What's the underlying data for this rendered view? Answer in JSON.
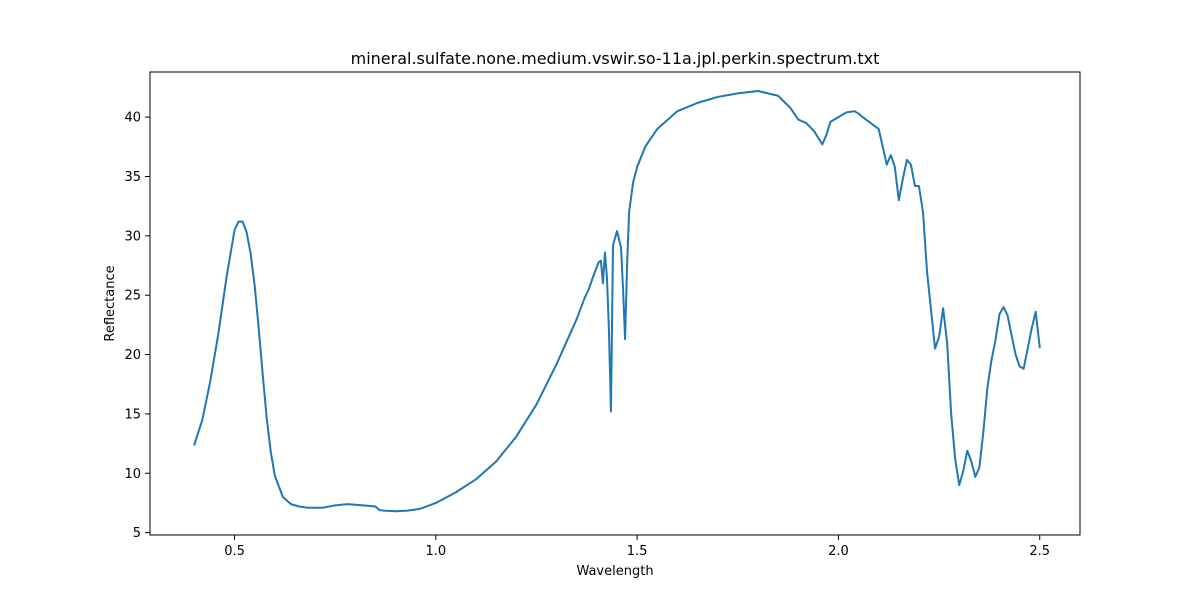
{
  "chart_data": {
    "type": "line",
    "title": "mineral.sulfate.none.medium.vswir.so-11a.jpl.perkin.spectrum.txt",
    "xlabel": "Wavelength",
    "ylabel": "Reflectance",
    "xlim": [
      0.29,
      2.6
    ],
    "ylim": [
      4.8,
      43.8
    ],
    "xticks": [
      0.5,
      1.0,
      1.5,
      2.0,
      2.5
    ],
    "xtick_labels": [
      "0.5",
      "1.0",
      "1.5",
      "2.0",
      "2.5"
    ],
    "yticks": [
      5,
      10,
      15,
      20,
      25,
      30,
      35,
      40
    ],
    "ytick_labels": [
      "5",
      "10",
      "15",
      "20",
      "25",
      "30",
      "35",
      "40"
    ],
    "grid": false,
    "legend": "none",
    "colors": {
      "line": "#1f77b4",
      "axes": "#000000",
      "background": "#ffffff"
    },
    "series": [
      {
        "x": [
          0.4,
          0.42,
          0.44,
          0.46,
          0.48,
          0.5,
          0.51,
          0.52,
          0.53,
          0.54,
          0.55,
          0.56,
          0.57,
          0.58,
          0.59,
          0.6,
          0.62,
          0.64,
          0.66,
          0.68,
          0.7,
          0.72,
          0.75,
          0.78,
          0.8,
          0.82,
          0.85,
          0.86,
          0.87,
          0.9,
          0.93,
          0.96,
          1.0,
          1.05,
          1.1,
          1.15,
          1.2,
          1.25,
          1.3,
          1.35,
          1.37,
          1.38,
          1.39,
          1.4,
          1.405,
          1.41,
          1.415,
          1.42,
          1.425,
          1.43,
          1.435,
          1.44,
          1.45,
          1.46,
          1.465,
          1.47,
          1.475,
          1.48,
          1.49,
          1.5,
          1.52,
          1.55,
          1.6,
          1.65,
          1.7,
          1.75,
          1.8,
          1.85,
          1.88,
          1.9,
          1.92,
          1.94,
          1.96,
          1.97,
          1.98,
          2.0,
          2.02,
          2.04,
          2.05,
          2.06,
          2.08,
          2.1,
          2.11,
          2.12,
          2.13,
          2.14,
          2.15,
          2.16,
          2.17,
          2.18,
          2.19,
          2.2,
          2.21,
          2.22,
          2.24,
          2.25,
          2.26,
          2.27,
          2.28,
          2.29,
          2.3,
          2.31,
          2.32,
          2.33,
          2.34,
          2.35,
          2.36,
          2.37,
          2.38,
          2.39,
          2.4,
          2.41,
          2.42,
          2.44,
          2.45,
          2.46,
          2.47,
          2.48,
          2.49,
          2.5
        ],
        "y": [
          12.4,
          14.5,
          17.8,
          21.8,
          26.5,
          30.5,
          31.2,
          31.2,
          30.3,
          28.5,
          25.8,
          22.2,
          18.3,
          14.6,
          11.8,
          9.8,
          8.0,
          7.4,
          7.2,
          7.1,
          7.1,
          7.1,
          7.3,
          7.4,
          7.35,
          7.3,
          7.2,
          6.9,
          6.85,
          6.8,
          6.85,
          7.0,
          7.5,
          8.4,
          9.5,
          11.0,
          13.1,
          15.8,
          19.2,
          23.0,
          24.8,
          25.5,
          26.5,
          27.4,
          27.8,
          27.9,
          26.0,
          28.6,
          26.5,
          22.0,
          15.2,
          29.2,
          30.4,
          29.0,
          25.5,
          21.3,
          27.5,
          32.0,
          34.5,
          35.8,
          37.5,
          39.0,
          40.5,
          41.2,
          41.7,
          42.0,
          42.2,
          41.8,
          40.8,
          39.8,
          39.5,
          38.8,
          37.7,
          38.5,
          39.6,
          40.0,
          40.4,
          40.5,
          40.3,
          40.0,
          39.5,
          39.0,
          37.5,
          36.0,
          36.8,
          35.8,
          33.0,
          34.8,
          36.4,
          36.0,
          34.2,
          34.2,
          32.0,
          27.0,
          20.5,
          21.5,
          23.9,
          21.0,
          15.0,
          11.2,
          9.0,
          10.2,
          11.9,
          11.0,
          9.7,
          10.5,
          13.5,
          17.2,
          19.5,
          21.2,
          23.4,
          24.0,
          23.3,
          20.0,
          19.0,
          18.8,
          20.5,
          22.2,
          23.6,
          20.6
        ]
      }
    ]
  }
}
